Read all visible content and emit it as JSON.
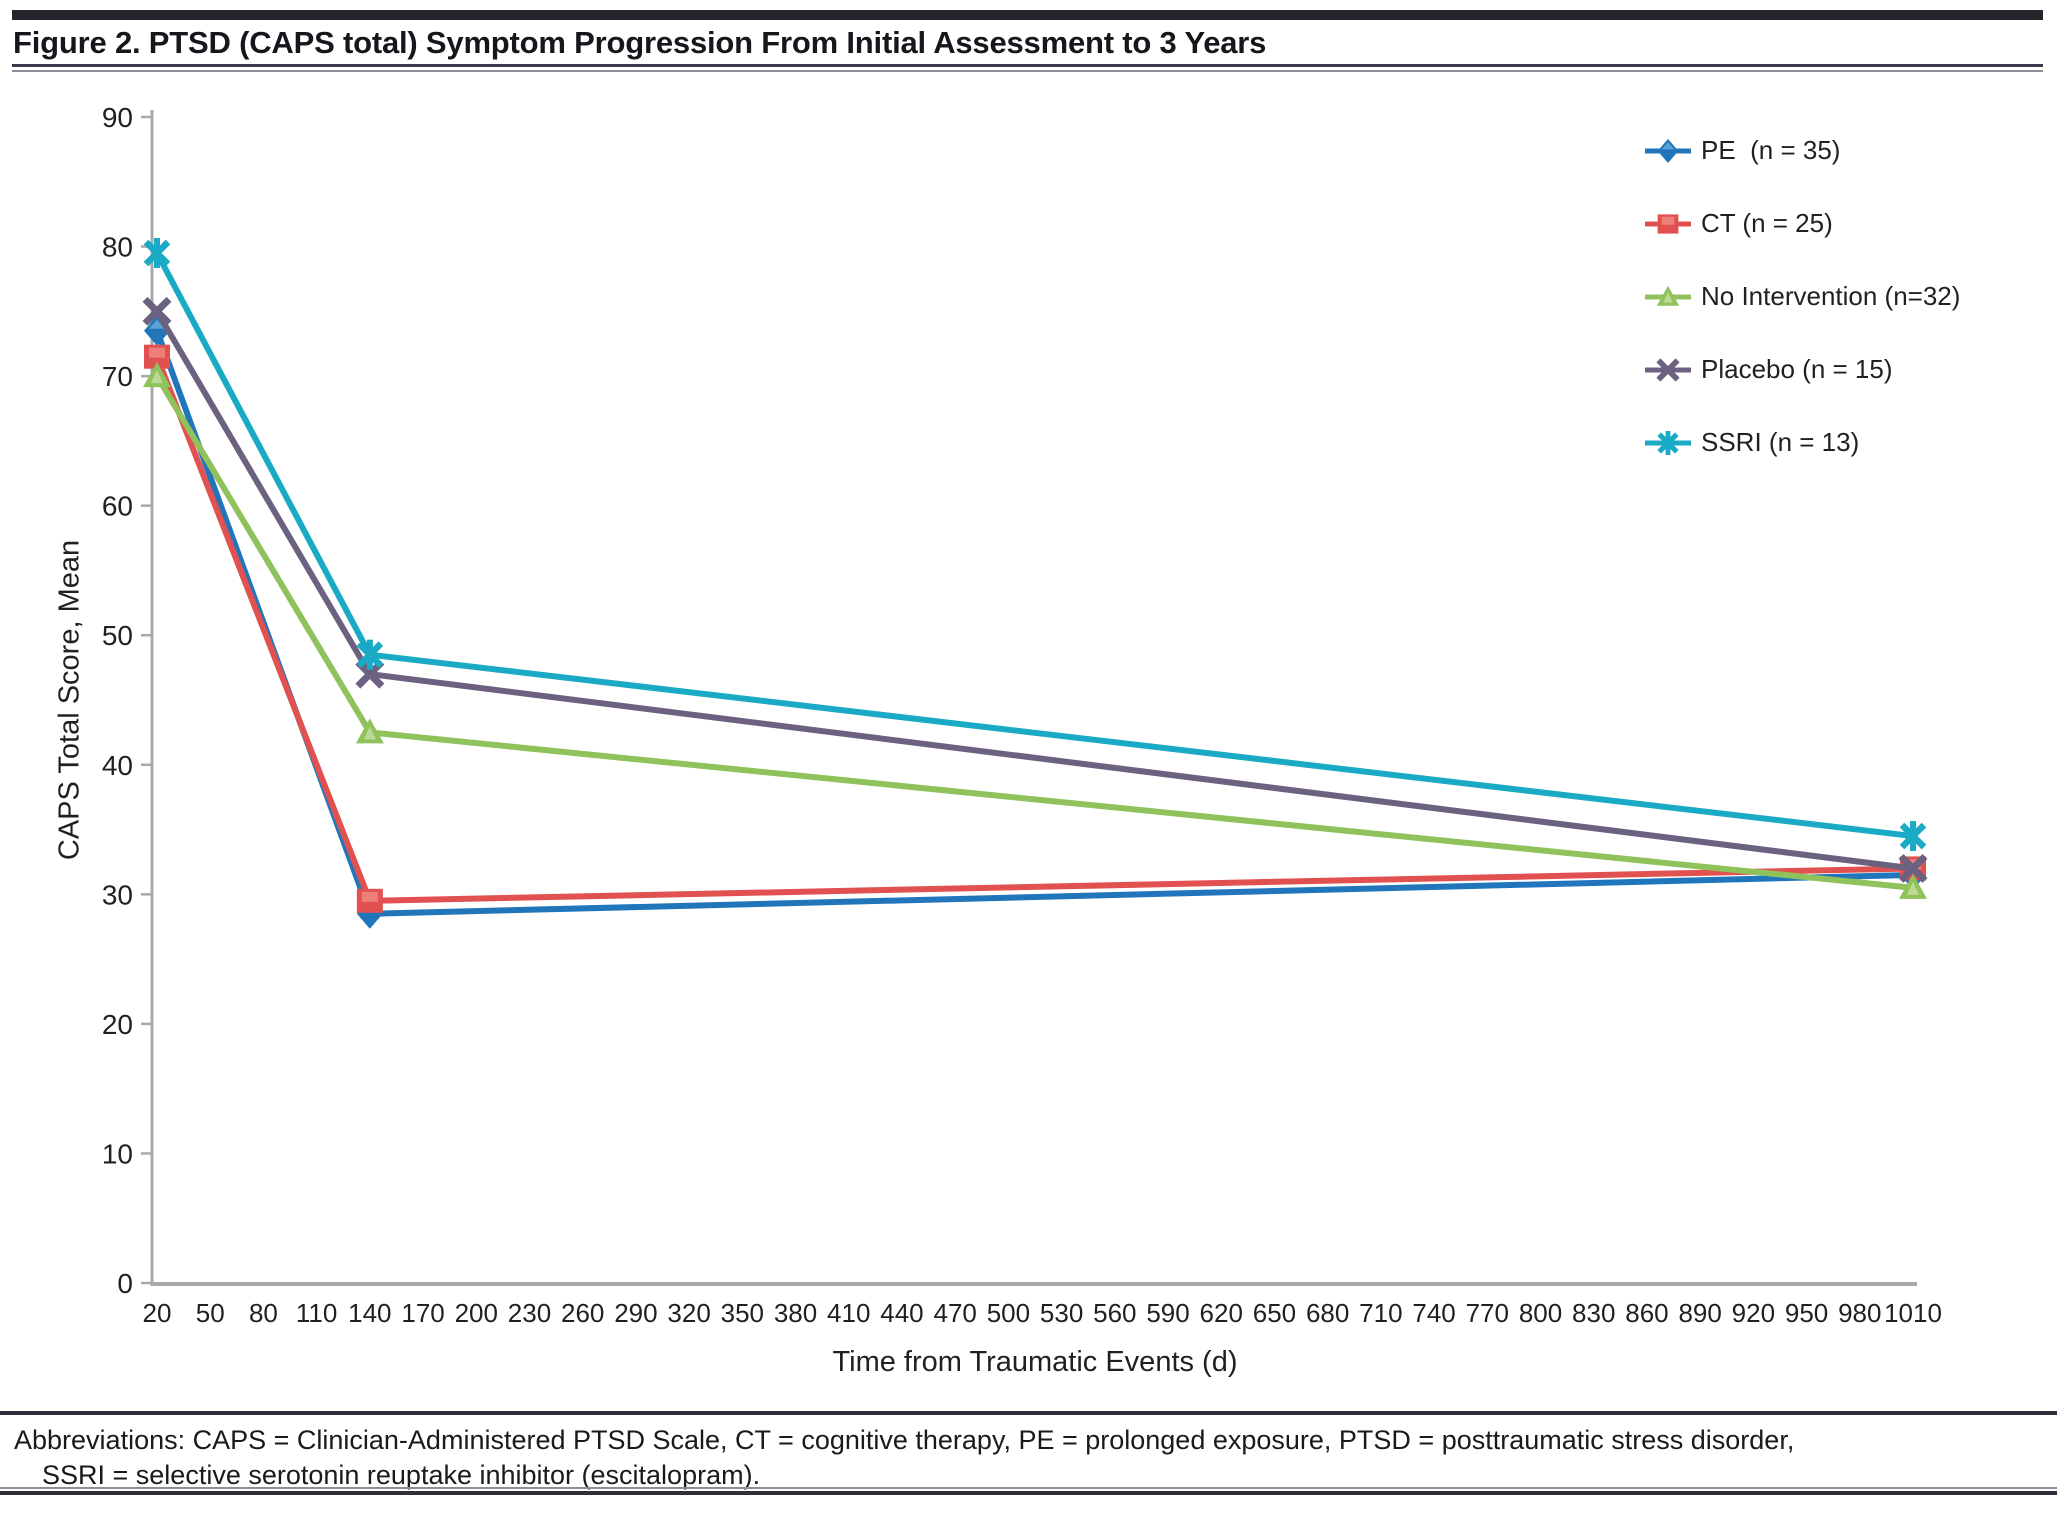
{
  "figure": {
    "title": "Figure 2. PTSD (CAPS total) Symptom Progression From Initial Assessment to 3 Years",
    "footnote_line1": "Abbreviations: CAPS = Clinician-Administered PTSD Scale, CT = cognitive therapy, PE = prolonged exposure, PTSD = posttraumatic stress disorder,",
    "footnote_line2": "SSRI = selective serotonin reuptake inhibitor (escitalopram)."
  },
  "chart_data": {
    "type": "line",
    "title": "",
    "xlabel": "Time from Traumatic Events (d)",
    "ylabel": "CAPS Total Score, Mean",
    "x": [
      20,
      140,
      1010
    ],
    "series": [
      {
        "name": "PE  (n = 35)",
        "marker": "diamond",
        "color": "#2176BB",
        "highlight": "#63A7D8",
        "values": [
          73.5,
          28.5,
          31.5
        ]
      },
      {
        "name": "CT (n = 25)",
        "marker": "square",
        "color": "#E05150",
        "highlight": "#F0867F",
        "values": [
          71.5,
          29.5,
          32
        ]
      },
      {
        "name": "No Intervention (n=32)",
        "marker": "triangle",
        "color": "#8FC25B",
        "highlight": "#C6DFA2",
        "values": [
          70,
          42.5,
          30.5
        ]
      },
      {
        "name": "Placebo (n = 15)",
        "marker": "x",
        "color": "#6C6180",
        "highlight": "#6C6180",
        "values": [
          75,
          47,
          32
        ]
      },
      {
        "name": "SSRI (n = 13)",
        "marker": "asterisk",
        "color": "#1BAAC5",
        "highlight": "#1BAAC5",
        "values": [
          79.5,
          48.5,
          34.5
        ]
      }
    ],
    "x_ticks": [
      20,
      50,
      80,
      110,
      140,
      170,
      200,
      230,
      260,
      290,
      320,
      350,
      380,
      410,
      440,
      470,
      500,
      530,
      560,
      590,
      620,
      650,
      680,
      710,
      740,
      770,
      800,
      830,
      860,
      890,
      920,
      950,
      980,
      1010
    ],
    "y_ticks": [
      0,
      10,
      20,
      30,
      40,
      50,
      60,
      70,
      80,
      90
    ],
    "xlim": [
      20,
      1010
    ],
    "ylim": [
      0,
      90
    ],
    "grid": false,
    "legend_position": "top-right",
    "axis_color": "#A9A9A9",
    "text_color": "#231F20"
  }
}
